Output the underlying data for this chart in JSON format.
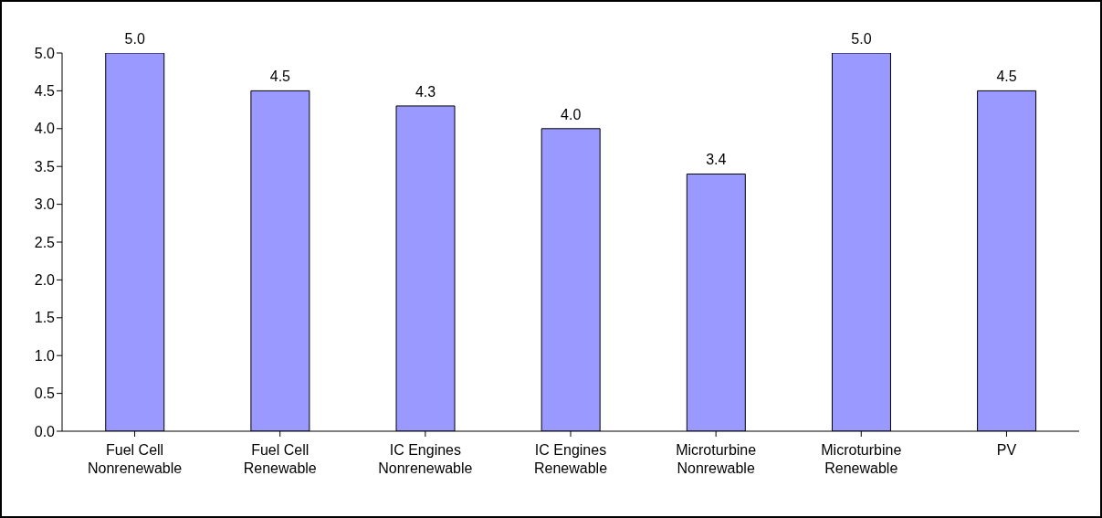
{
  "chart_data": {
    "type": "bar",
    "categories": [
      "Fuel Cell\nNonrenewable",
      "Fuel Cell\nRenewable",
      "IC Engines\nNonrenewable",
      "IC Engines\nRenewable",
      "Microturbine\nNonrewable",
      "Microturbine\nRenewable",
      "PV"
    ],
    "values": [
      5.0,
      4.5,
      4.3,
      4.0,
      3.4,
      5.0,
      4.5
    ],
    "value_labels": [
      "5.0",
      "4.5",
      "4.3",
      "4.0",
      "3.4",
      "5.0",
      "4.5"
    ],
    "color": "#9999ff",
    "ylim": [
      0,
      5
    ],
    "yticks": [
      {
        "value": 0,
        "label": "0.0"
      },
      {
        "value": 0.5,
        "label": "0.5"
      },
      {
        "value": 1,
        "label": "1.0"
      },
      {
        "value": 1.5,
        "label": "1.5"
      },
      {
        "value": 2,
        "label": "2.0"
      },
      {
        "value": 2.5,
        "label": "2.5"
      },
      {
        "value": 3,
        "label": "3.0"
      },
      {
        "value": 3.5,
        "label": "3.5"
      },
      {
        "value": 4,
        "label": "4.0"
      },
      {
        "value": 4.5,
        "label": "4.5"
      },
      {
        "value": 5,
        "label": "5.0"
      }
    ],
    "grid": false,
    "legend": false
  }
}
